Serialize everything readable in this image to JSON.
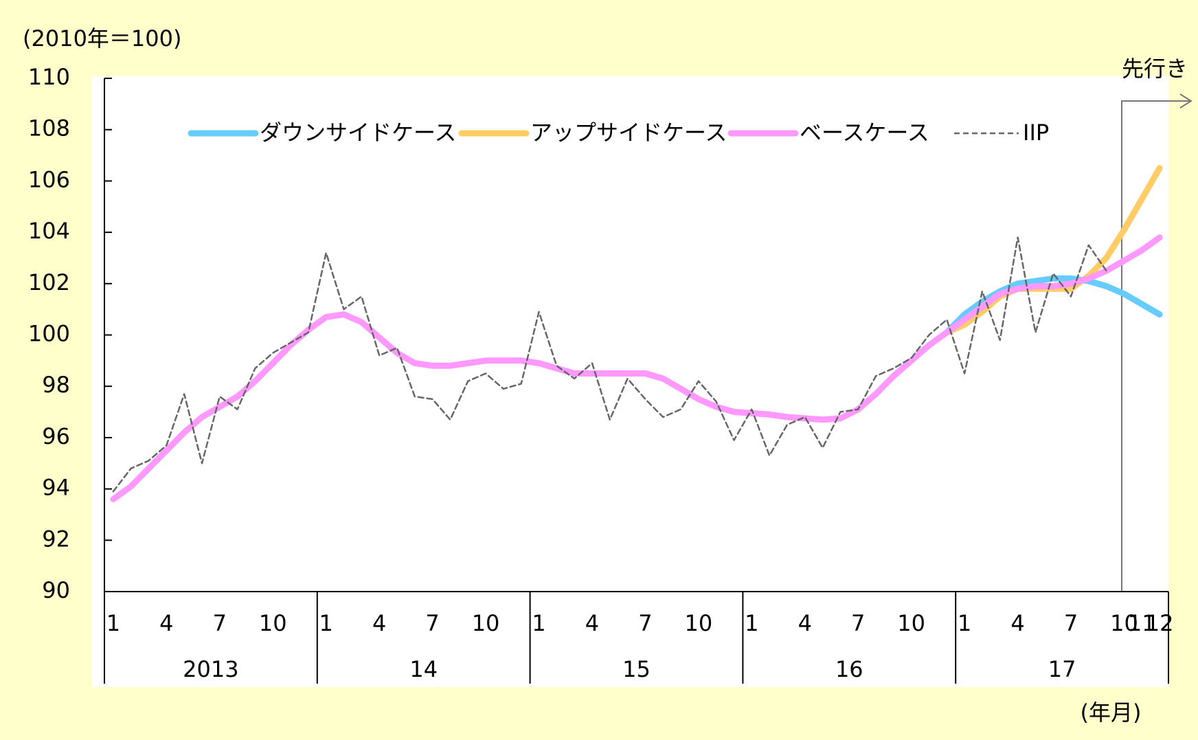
{
  "chart_data": {
    "type": "line",
    "y_unit_label": "(2010年＝100)",
    "x_unit_label": "(年月)",
    "annotation": "先行き",
    "categories": [
      "1",
      null,
      null,
      "4",
      null,
      null,
      "7",
      null,
      null,
      "10",
      null,
      null,
      "1",
      null,
      null,
      "4",
      null,
      null,
      "7",
      null,
      null,
      "10",
      null,
      null,
      "1",
      null,
      null,
      "4",
      null,
      null,
      "7",
      null,
      null,
      "10",
      null,
      null,
      "1",
      null,
      null,
      "4",
      null,
      null,
      "7",
      null,
      null,
      "10",
      null,
      null,
      "1",
      null,
      null,
      "4",
      null,
      null,
      "7",
      null,
      null,
      "10",
      "11",
      "12"
    ],
    "year_labels": [
      "2013",
      "14",
      "15",
      "16",
      "17"
    ],
    "ylim": [
      90,
      110
    ],
    "yticks": [
      90,
      92,
      94,
      96,
      98,
      100,
      102,
      104,
      106,
      108,
      110
    ],
    "series": [
      {
        "name": "ダウンサイドケース",
        "color": "#66ccff",
        "values": [
          null,
          null,
          null,
          null,
          null,
          null,
          null,
          null,
          null,
          null,
          null,
          null,
          null,
          null,
          null,
          null,
          null,
          null,
          null,
          null,
          null,
          null,
          null,
          null,
          null,
          null,
          null,
          null,
          null,
          null,
          null,
          null,
          null,
          null,
          null,
          null,
          null,
          null,
          null,
          null,
          null,
          null,
          null,
          null,
          null,
          null,
          null,
          100.1,
          100.8,
          101.3,
          101.7,
          102.0,
          102.1,
          102.2,
          102.2,
          102.1,
          101.9,
          101.6,
          101.2,
          100.8
        ]
      },
      {
        "name": "アップサイドケース",
        "color": "#ffcc66",
        "values": [
          null,
          null,
          null,
          null,
          null,
          null,
          null,
          null,
          null,
          null,
          null,
          null,
          null,
          null,
          null,
          null,
          null,
          null,
          null,
          null,
          null,
          null,
          null,
          null,
          null,
          null,
          null,
          null,
          null,
          null,
          null,
          null,
          null,
          null,
          null,
          null,
          null,
          null,
          null,
          null,
          null,
          null,
          null,
          null,
          null,
          null,
          null,
          100.1,
          100.4,
          100.9,
          101.5,
          101.8,
          101.8,
          101.8,
          101.8,
          102.3,
          103.0,
          104.1,
          105.3,
          106.5
        ]
      },
      {
        "name": "ベースケース",
        "color": "#ff99ff",
        "values": [
          93.6,
          94.1,
          94.8,
          95.5,
          96.2,
          96.8,
          97.2,
          97.6,
          98.2,
          98.9,
          99.6,
          100.2,
          100.7,
          100.8,
          100.5,
          99.9,
          99.3,
          98.9,
          98.8,
          98.8,
          98.9,
          99.0,
          99.0,
          99.0,
          98.9,
          98.7,
          98.5,
          98.5,
          98.5,
          98.5,
          98.5,
          98.3,
          97.9,
          97.5,
          97.2,
          97.0,
          96.95,
          96.9,
          96.8,
          96.75,
          96.7,
          96.75,
          97.1,
          97.7,
          98.4,
          99.0,
          99.6,
          100.1,
          100.6,
          101.1,
          101.6,
          101.8,
          101.9,
          101.9,
          102.0,
          102.2,
          102.5,
          102.9,
          103.3,
          103.8
        ]
      },
      {
        "name": "IIP",
        "color": "#666666",
        "dashed": true,
        "values": [
          93.9,
          94.8,
          95.1,
          95.7,
          97.7,
          95.0,
          97.6,
          97.1,
          98.7,
          99.3,
          99.7,
          100.1,
          103.2,
          101.0,
          101.5,
          99.2,
          99.5,
          97.6,
          97.5,
          96.7,
          98.2,
          98.5,
          97.9,
          98.1,
          100.9,
          98.8,
          98.3,
          98.9,
          96.7,
          98.3,
          97.5,
          96.8,
          97.1,
          98.2,
          97.4,
          95.9,
          97.1,
          95.3,
          96.5,
          96.8,
          95.6,
          97.0,
          97.1,
          98.4,
          98.7,
          99.1,
          100.0,
          100.6,
          98.5,
          101.7,
          99.8,
          103.8,
          100.1,
          102.4,
          101.5,
          103.5,
          102.5,
          null,
          null,
          null
        ]
      }
    ]
  }
}
